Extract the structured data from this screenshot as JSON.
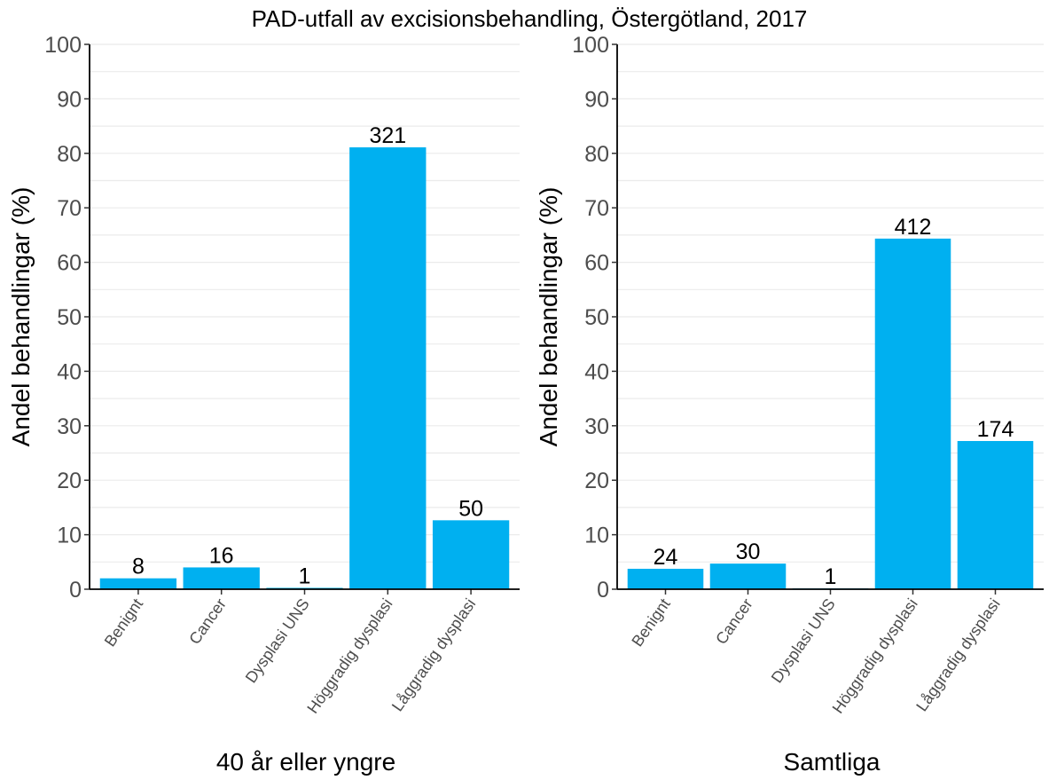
{
  "title": "PAD-utfall av excisionsbehandling, Östergötland, 2017",
  "chart_data": [
    {
      "type": "bar",
      "xlabel": "40 år eller yngre",
      "ylabel": "Andel behandlingar (%)",
      "ylim": [
        0,
        100
      ],
      "yticks": [
        "0",
        "10",
        "20",
        "30",
        "40",
        "50",
        "60",
        "70",
        "80",
        "90",
        "100"
      ],
      "categories": [
        "Benignt",
        "Cancer",
        "Dysplasi UNS",
        "Höggradig dysplasi",
        "Låggradig dysplasi"
      ],
      "values": [
        2.0,
        4.0,
        0.25,
        81.1,
        12.65
      ],
      "labels": [
        "8",
        "16",
        "1",
        "321",
        "50"
      ],
      "grid": true,
      "color": "#00b0f0"
    },
    {
      "type": "bar",
      "xlabel": "Samtliga",
      "ylabel": "Andel behandlingar (%)",
      "ylim": [
        0,
        100
      ],
      "yticks": [
        "0",
        "10",
        "20",
        "30",
        "40",
        "50",
        "60",
        "70",
        "80",
        "90",
        "100"
      ],
      "categories": [
        "Benignt",
        "Cancer",
        "Dysplasi UNS",
        "Höggradig dysplasi",
        "Låggradig dysplasi"
      ],
      "values": [
        3.75,
        4.7,
        0.16,
        64.35,
        27.2
      ],
      "labels": [
        "24",
        "30",
        "1",
        "412",
        "174"
      ],
      "grid": true,
      "color": "#00b0f0"
    }
  ]
}
